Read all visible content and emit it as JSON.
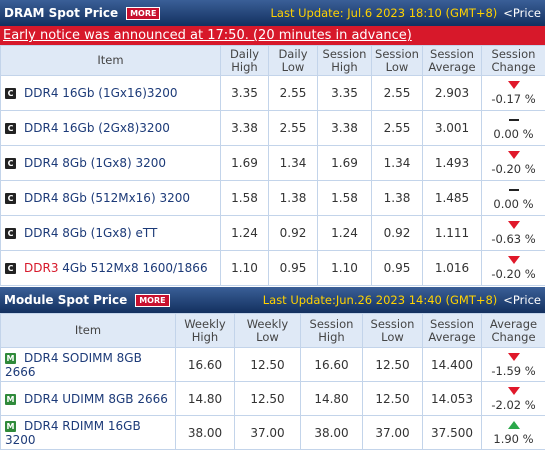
{
  "dram": {
    "title": "DRAM Spot Price",
    "more": "MORE",
    "last_update": "Last Update: Jul.6 2023 18:10 (GMT+8)",
    "price_link": "<Price",
    "notice": "Early notice was announced at 17:50. (20 minutes in advance)",
    "columns": [
      "Item",
      "Daily High",
      "Daily Low",
      "Session High",
      "Session Low",
      "Session Average",
      "Session Change"
    ],
    "rows": [
      {
        "item": "DDR4 16Gb (1Gx16)3200",
        "values": [
          "3.35",
          "2.55",
          "3.35",
          "2.55",
          "2.903"
        ],
        "change": "-0.17 %"
      },
      {
        "item": "DDR4 16Gb (2Gx8)3200",
        "values": [
          "3.38",
          "2.55",
          "3.38",
          "2.55",
          "3.001"
        ],
        "change": "0.00 %"
      },
      {
        "item": "DDR4 8Gb (1Gx8) 3200",
        "values": [
          "1.69",
          "1.34",
          "1.69",
          "1.34",
          "1.493"
        ],
        "change": "-0.20 %"
      },
      {
        "item": "DDR4 8Gb (512Mx16) 3200",
        "values": [
          "1.58",
          "1.38",
          "1.58",
          "1.38",
          "1.485"
        ],
        "change": "0.00 %"
      },
      {
        "item": "DDR4 8Gb (1Gx8) eTT",
        "values": [
          "1.24",
          "0.92",
          "1.24",
          "0.92",
          "1.111"
        ],
        "change": "-0.63 %"
      },
      {
        "item_highlight": "DDR3",
        "item": "4Gb 512Mx8 1600/1866",
        "values": [
          "1.10",
          "0.95",
          "1.10",
          "0.95",
          "1.016"
        ],
        "change": "-0.20 %"
      }
    ]
  },
  "module": {
    "title": "Module Spot Price",
    "more": "MORE",
    "last_update": "Last Update:Jun.26 2023 14:40 (GMT+8)",
    "price_link": "<Price",
    "columns": [
      "Item",
      "Weekly High",
      "Weekly Low",
      "Session High",
      "Session Low",
      "Session Average",
      "Average Change"
    ],
    "rows": [
      {
        "item": "DDR4 SODIMM 8GB 2666",
        "values": [
          "16.60",
          "12.50",
          "16.60",
          "12.50",
          "14.400"
        ],
        "change": "-1.59 %"
      },
      {
        "item": "DDR4 UDIMM 8GB 2666",
        "values": [
          "14.80",
          "12.50",
          "14.80",
          "12.50",
          "14.053"
        ],
        "change": "-2.02 %"
      },
      {
        "item": "DDR4 RDIMM 16GB 3200",
        "values": [
          "38.00",
          "37.00",
          "38.00",
          "37.00",
          "37.500"
        ],
        "change": "1.90 %"
      }
    ]
  }
}
